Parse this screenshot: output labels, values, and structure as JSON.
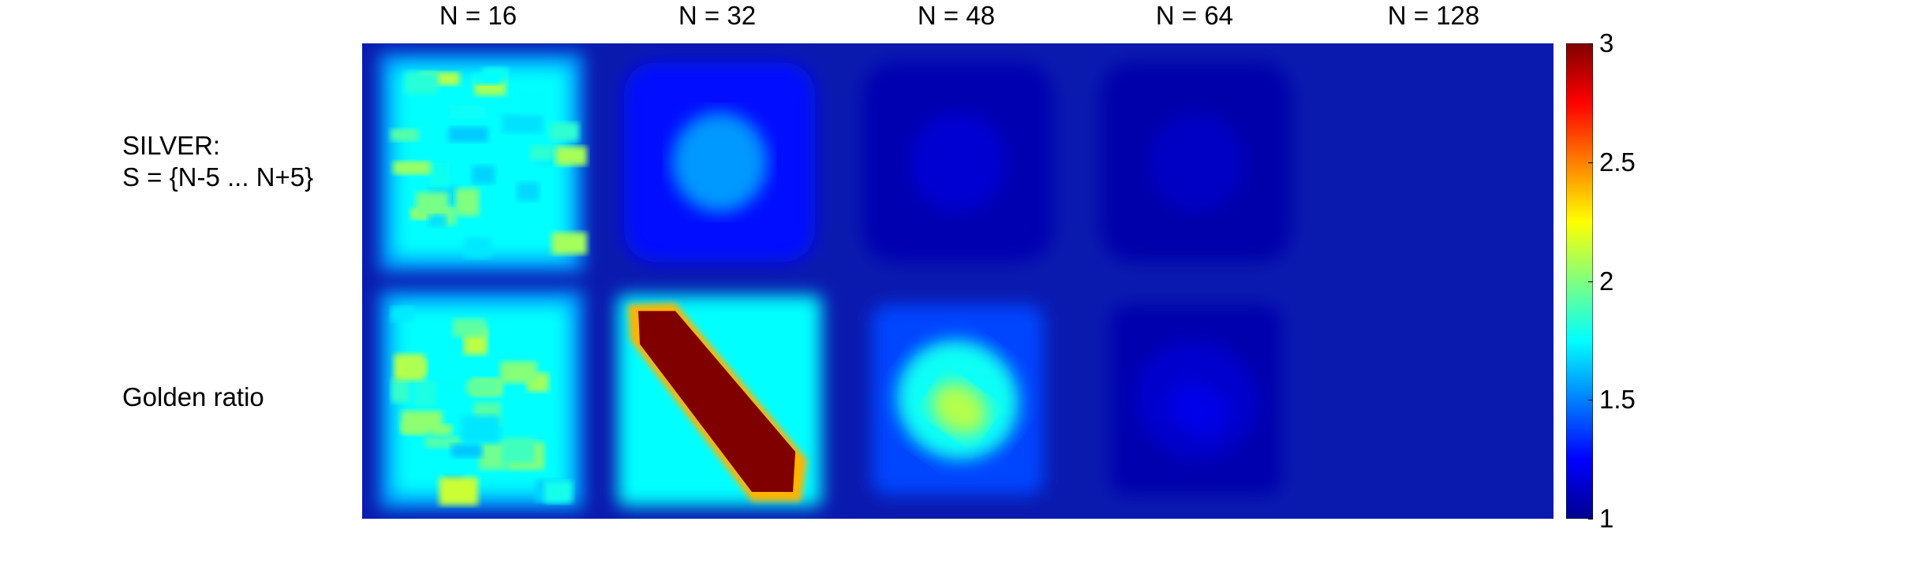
{
  "chart_data": {
    "type": "heatmap",
    "columns": [
      "N = 16",
      "N = 32",
      "N = 48",
      "N = 64",
      "N = 128"
    ],
    "rows": [
      {
        "label": "SILVER:\nS = {N-5 ... N+5}",
        "peak": [
          1.85,
          1.55,
          1.15,
          1.12,
          1.0
        ]
      },
      {
        "label": "Golden ratio",
        "peak": [
          1.85,
          3.0,
          2.1,
          1.2,
          1.0
        ]
      }
    ],
    "colorbar": {
      "min": 1,
      "max": 3,
      "ticks": [
        "1",
        "1.5",
        "2",
        "2.5",
        "3"
      ],
      "colormap": "jet"
    },
    "background_color": "#0A1AAF"
  }
}
